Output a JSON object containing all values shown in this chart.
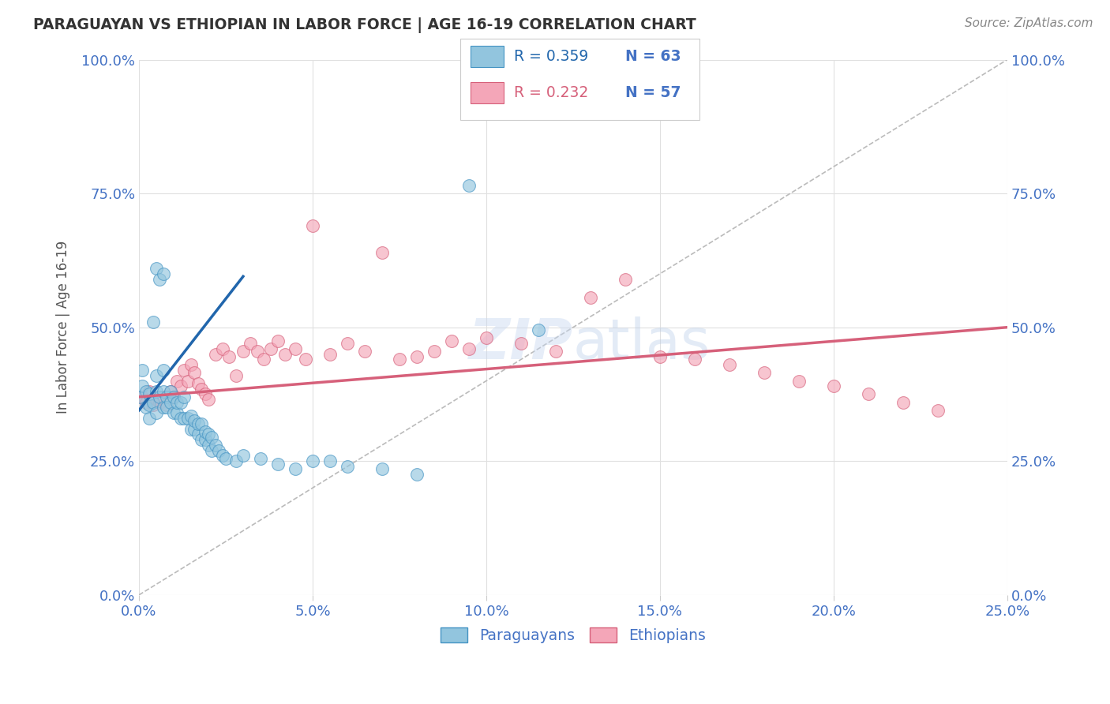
{
  "title": "PARAGUAYAN VS ETHIOPIAN IN LABOR FORCE | AGE 16-19 CORRELATION CHART",
  "source": "Source: ZipAtlas.com",
  "ylabel": "In Labor Force | Age 16-19",
  "xlim": [
    0.0,
    0.25
  ],
  "ylim": [
    0.0,
    1.0
  ],
  "xticks": [
    0.0,
    0.05,
    0.1,
    0.15,
    0.2,
    0.25
  ],
  "yticks": [
    0.0,
    0.25,
    0.5,
    0.75,
    1.0
  ],
  "xtick_labels": [
    "0.0%",
    "5.0%",
    "10.0%",
    "15.0%",
    "20.0%",
    "25.0%"
  ],
  "ytick_labels": [
    "0.0%",
    "25.0%",
    "50.0%",
    "75.0%",
    "100.0%"
  ],
  "legend_R": [
    0.359,
    0.232
  ],
  "legend_N": [
    63,
    57
  ],
  "blue_color": "#92c5de",
  "pink_color": "#f4a6b8",
  "blue_edge_color": "#4393c3",
  "pink_edge_color": "#d6607a",
  "blue_line_color": "#2166ac",
  "pink_line_color": "#d6607a",
  "ref_line_color": "#bbbbbb",
  "background_color": "#ffffff",
  "grid_color": "#e0e0e0",
  "title_color": "#333333",
  "tick_label_color": "#4472c4",
  "source_color": "#888888",
  "blue_dots_x": [
    0.0,
    0.001,
    0.001,
    0.002,
    0.002,
    0.003,
    0.003,
    0.003,
    0.004,
    0.004,
    0.005,
    0.005,
    0.005,
    0.005,
    0.006,
    0.006,
    0.007,
    0.007,
    0.007,
    0.007,
    0.008,
    0.008,
    0.009,
    0.009,
    0.01,
    0.01,
    0.011,
    0.011,
    0.012,
    0.012,
    0.013,
    0.013,
    0.014,
    0.015,
    0.015,
    0.016,
    0.016,
    0.017,
    0.017,
    0.018,
    0.018,
    0.019,
    0.019,
    0.02,
    0.02,
    0.021,
    0.021,
    0.022,
    0.023,
    0.024,
    0.025,
    0.028,
    0.03,
    0.035,
    0.04,
    0.045,
    0.05,
    0.055,
    0.06,
    0.07,
    0.08,
    0.095,
    0.115
  ],
  "blue_dots_y": [
    0.37,
    0.39,
    0.42,
    0.35,
    0.38,
    0.33,
    0.355,
    0.375,
    0.36,
    0.51,
    0.34,
    0.38,
    0.41,
    0.61,
    0.37,
    0.59,
    0.35,
    0.38,
    0.42,
    0.6,
    0.37,
    0.35,
    0.36,
    0.38,
    0.34,
    0.37,
    0.34,
    0.36,
    0.33,
    0.36,
    0.33,
    0.37,
    0.33,
    0.31,
    0.335,
    0.31,
    0.325,
    0.3,
    0.32,
    0.29,
    0.32,
    0.29,
    0.305,
    0.28,
    0.3,
    0.27,
    0.295,
    0.28,
    0.27,
    0.26,
    0.255,
    0.25,
    0.26,
    0.255,
    0.245,
    0.235,
    0.25,
    0.25,
    0.24,
    0.235,
    0.225,
    0.765,
    0.495
  ],
  "pink_dots_x": [
    0.001,
    0.002,
    0.003,
    0.004,
    0.005,
    0.006,
    0.007,
    0.008,
    0.009,
    0.01,
    0.011,
    0.012,
    0.013,
    0.014,
    0.015,
    0.016,
    0.017,
    0.018,
    0.019,
    0.02,
    0.022,
    0.024,
    0.026,
    0.028,
    0.03,
    0.032,
    0.034,
    0.036,
    0.038,
    0.04,
    0.042,
    0.045,
    0.048,
    0.05,
    0.055,
    0.06,
    0.065,
    0.07,
    0.075,
    0.08,
    0.085,
    0.09,
    0.095,
    0.1,
    0.11,
    0.12,
    0.13,
    0.14,
    0.15,
    0.16,
    0.17,
    0.18,
    0.19,
    0.2,
    0.21,
    0.22,
    0.23
  ],
  "pink_dots_y": [
    0.37,
    0.36,
    0.38,
    0.355,
    0.365,
    0.36,
    0.37,
    0.355,
    0.38,
    0.37,
    0.4,
    0.39,
    0.42,
    0.4,
    0.43,
    0.415,
    0.395,
    0.385,
    0.375,
    0.365,
    0.45,
    0.46,
    0.445,
    0.41,
    0.455,
    0.47,
    0.455,
    0.44,
    0.46,
    0.475,
    0.45,
    0.46,
    0.44,
    0.69,
    0.45,
    0.47,
    0.455,
    0.64,
    0.44,
    0.445,
    0.455,
    0.475,
    0.46,
    0.48,
    0.47,
    0.455,
    0.555,
    0.59,
    0.445,
    0.44,
    0.43,
    0.415,
    0.4,
    0.39,
    0.375,
    0.36,
    0.345
  ],
  "blue_trend_x": [
    0.0,
    0.03
  ],
  "blue_trend_y": [
    0.345,
    0.595
  ],
  "pink_trend_x": [
    0.0,
    0.25
  ],
  "pink_trend_y": [
    0.37,
    0.5
  ],
  "ref_line_x": [
    0.0,
    0.25
  ],
  "ref_line_y": [
    0.0,
    1.0
  ]
}
